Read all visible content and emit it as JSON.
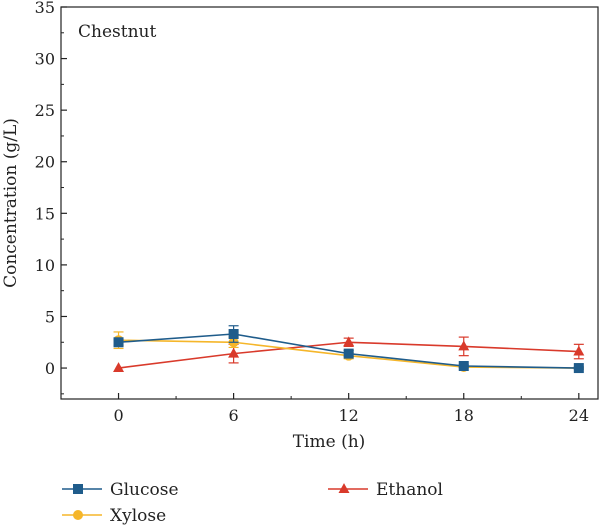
{
  "chart_data": {
    "type": "line",
    "annotation": "Chestnut",
    "xlabel": "Time (h)",
    "ylabel": "Concentration (g/L)",
    "x": [
      0,
      6,
      12,
      18,
      24
    ],
    "x_ticks": [
      "0",
      "6",
      "12",
      "18",
      "24"
    ],
    "y_ticks": [
      "0",
      "5",
      "10",
      "15",
      "20",
      "25",
      "30",
      "35"
    ],
    "xlim": [
      -3,
      25
    ],
    "ylim": [
      -3,
      35
    ],
    "grid": false,
    "legend_position": "bottom",
    "series": [
      {
        "name": "Glucose",
        "color": "#1f5c8b",
        "marker": "square",
        "values": [
          2.5,
          3.3,
          1.4,
          0.2,
          0.0
        ],
        "errors": [
          0.3,
          0.8,
          0.3,
          0.1,
          0.1
        ]
      },
      {
        "name": "Xylose",
        "color": "#f5b62a",
        "marker": "circle",
        "values": [
          2.7,
          2.5,
          1.2,
          0.1,
          0.0
        ],
        "errors": [
          0.8,
          0.5,
          0.3,
          0.1,
          0.1
        ]
      },
      {
        "name": "Ethanol",
        "color": "#d93a2b",
        "marker": "triangle",
        "values": [
          0.0,
          1.4,
          2.5,
          2.1,
          1.6
        ],
        "errors": [
          0.0,
          0.9,
          0.4,
          0.9,
          0.7
        ]
      }
    ]
  }
}
